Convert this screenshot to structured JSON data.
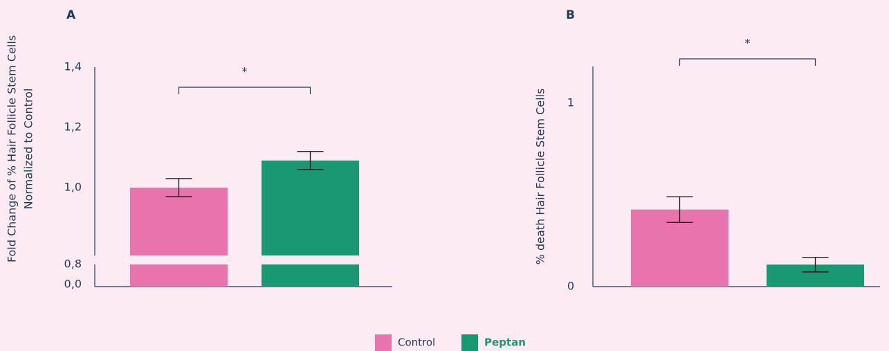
{
  "chart_data": [
    {
      "type": "bar",
      "panel": "A",
      "ylabel": [
        "Fold Change of % Hair Follicle Stem Cells",
        "Normalized to Control"
      ],
      "values": [
        1.0,
        1.09
      ],
      "errors": [
        0.03,
        0.03
      ],
      "ylim": [
        0,
        1.4
      ],
      "yticks": [
        {
          "value": 0,
          "label": "0,0"
        },
        {
          "value": 0.8,
          "label": "0,8"
        },
        {
          "value": 1.0,
          "label": "1,0"
        },
        {
          "value": 1.2,
          "label": "1,2"
        },
        {
          "value": 1.4,
          "label": "1,4"
        }
      ],
      "significance": "*"
    },
    {
      "type": "bar",
      "panel": "B",
      "ylabel": [
        "% death Hair Follicle Stem Cells"
      ],
      "values": [
        0.42,
        0.12
      ],
      "errors": [
        0.07,
        0.04
      ],
      "ylim": [
        0,
        1.2
      ],
      "yticks": [
        0,
        1
      ],
      "significance": "*"
    }
  ],
  "legend": {
    "items": [
      {
        "name": "Control",
        "color": "#e873ad"
      },
      {
        "name": "Peptan",
        "color": "#1a9873"
      }
    ]
  }
}
